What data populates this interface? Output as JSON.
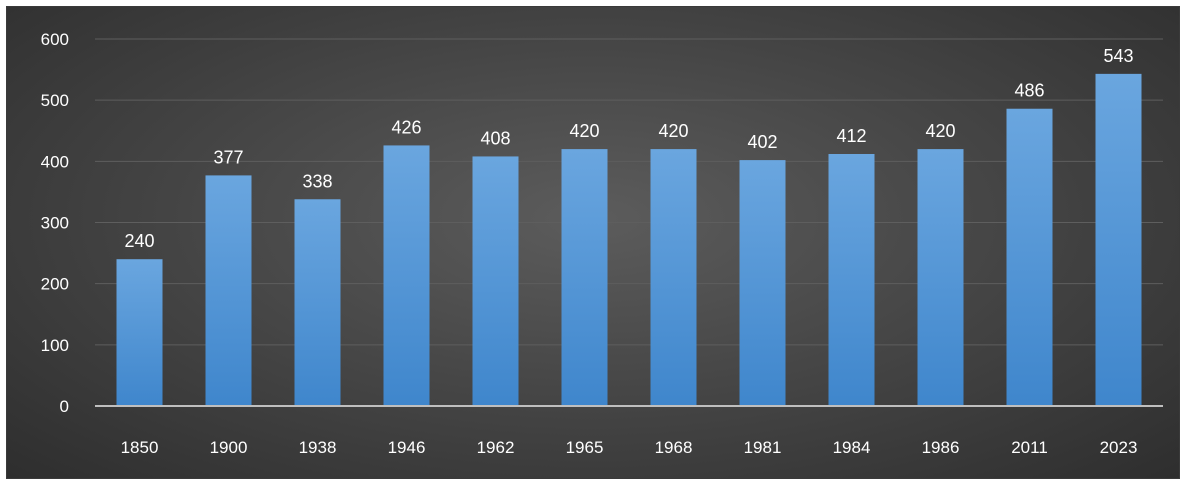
{
  "chart_data": {
    "type": "bar",
    "categories": [
      "1850",
      "1900",
      "1938",
      "1946",
      "1962",
      "1965",
      "1968",
      "1981",
      "1984",
      "1986",
      "2011",
      "2023"
    ],
    "values": [
      240,
      377,
      338,
      426,
      408,
      420,
      420,
      402,
      412,
      420,
      486,
      543
    ],
    "ylim": [
      0,
      600
    ],
    "yticks": [
      0,
      100,
      200,
      300,
      400,
      500,
      600
    ],
    "title": "",
    "xlabel": "",
    "ylabel": "",
    "grid": true,
    "legend": "none",
    "data_labels": true,
    "colors": {
      "bar_top": "#6aa6df",
      "bar_bottom": "#3f86cc",
      "background_center": "#5c5c5c",
      "background_edge": "#2e2e2e",
      "gridline": "#5e5e5e",
      "axis": "#bfbfbf",
      "text": "#ffffff"
    }
  }
}
